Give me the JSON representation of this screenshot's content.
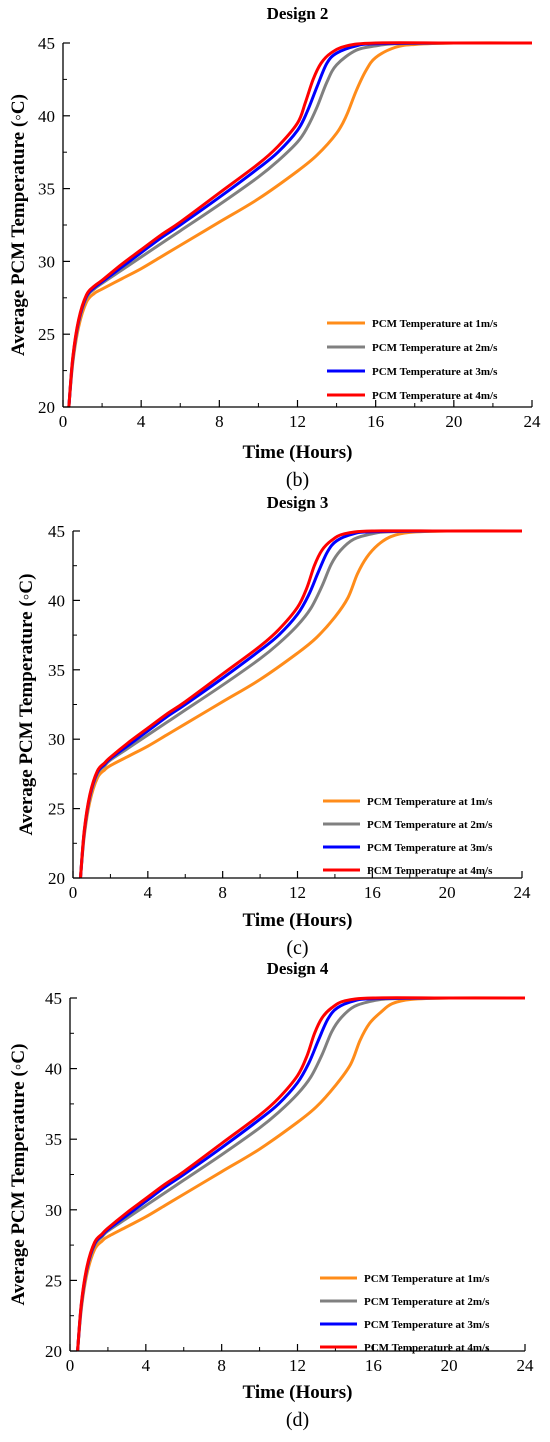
{
  "colors": {
    "1m/s": "#ff8c1a",
    "2m/s": "#808080",
    "3m/s": "#0000ff",
    "4m/s": "#ff0000"
  },
  "chart_data": [
    {
      "type": "line",
      "title": "Design 2",
      "panel_label": "(b)",
      "xlabel": "Time (Hours)",
      "ylabel": "Average PCM Temperature (◦C)",
      "xlim": [
        0,
        24
      ],
      "ylim": [
        20,
        45
      ],
      "xticks": [
        0,
        4,
        8,
        12,
        16,
        20,
        24
      ],
      "yticks": [
        20,
        25,
        30,
        35,
        40,
        45
      ],
      "legend_position": "lower-right",
      "series": [
        {
          "name": "PCM Temperature at 1m/s",
          "color_key": "1m/s",
          "x": [
            0.3,
            0.5,
            0.8,
            1.2,
            1.6,
            2,
            3,
            4,
            5,
            6,
            8,
            10,
            12,
            13,
            14,
            14.5,
            15,
            15.5,
            16,
            17,
            18,
            20,
            24
          ],
          "y": [
            20,
            23,
            25.5,
            27.2,
            27.8,
            28.1,
            28.8,
            29.5,
            30.3,
            31.1,
            32.7,
            34.3,
            36.2,
            37.3,
            38.8,
            40,
            41.7,
            43.1,
            44,
            44.7,
            44.9,
            45,
            45
          ]
        },
        {
          "name": "PCM Temperature at 2m/s",
          "color_key": "2m/s",
          "x": [
            0.3,
            0.5,
            0.8,
            1.2,
            1.6,
            2,
            3,
            4,
            5,
            6,
            8,
            10,
            11,
            12,
            12.5,
            13,
            13.5,
            14,
            15,
            16,
            17,
            20,
            24
          ],
          "y": [
            20,
            23.2,
            25.8,
            27.5,
            28.1,
            28.5,
            29.4,
            30.3,
            31.2,
            32.1,
            33.9,
            35.8,
            36.9,
            38.2,
            39.2,
            40.6,
            42.3,
            43.5,
            44.5,
            44.8,
            44.95,
            45,
            45
          ]
        },
        {
          "name": "PCM Temperature at 3m/s",
          "color_key": "3m/s",
          "x": [
            0.3,
            0.5,
            0.8,
            1.2,
            1.6,
            2,
            3,
            4,
            5,
            6,
            8,
            10,
            11,
            12,
            12.5,
            13,
            13.5,
            14,
            15,
            16,
            20,
            24
          ],
          "y": [
            20,
            23.3,
            25.9,
            27.6,
            28.2,
            28.6,
            29.6,
            30.6,
            31.6,
            32.5,
            34.4,
            36.4,
            37.5,
            39,
            40.3,
            42,
            43.6,
            44.3,
            44.8,
            44.95,
            45,
            45
          ]
        },
        {
          "name": "PCM Temperature at 4m/s",
          "color_key": "4m/s",
          "x": [
            0.3,
            0.5,
            0.8,
            1.2,
            1.6,
            2,
            3,
            4,
            5,
            6,
            8,
            10,
            11,
            12,
            12.4,
            12.8,
            13.2,
            13.7,
            14.5,
            16,
            20,
            24
          ],
          "y": [
            20,
            23.4,
            26,
            27.7,
            28.3,
            28.7,
            29.8,
            30.8,
            31.8,
            32.7,
            34.7,
            36.7,
            37.9,
            39.5,
            40.9,
            42.5,
            43.6,
            44.3,
            44.8,
            45,
            45,
            45
          ]
        }
      ]
    },
    {
      "type": "line",
      "title": "Design 3",
      "panel_label": "(c)",
      "xlabel": "Time (Hours)",
      "ylabel": "Average PCM Temperature (◦C)",
      "xlim": [
        0,
        24
      ],
      "ylim": [
        20,
        45
      ],
      "xticks": [
        0,
        4,
        8,
        12,
        16,
        20,
        24
      ],
      "yticks": [
        20,
        25,
        30,
        35,
        40,
        45
      ],
      "legend_position": "lower-right",
      "series": [
        {
          "name": "PCM Temperature at 1m/s",
          "color_key": "1m/s",
          "x": [
            0.4,
            0.6,
            0.9,
            1.3,
            1.7,
            2,
            3,
            4,
            5,
            6,
            8,
            10,
            12,
            13,
            14,
            14.7,
            15.2,
            15.7,
            16.3,
            17,
            18,
            20,
            24
          ],
          "y": [
            20,
            23,
            25.5,
            27.2,
            27.8,
            28.1,
            28.8,
            29.5,
            30.3,
            31.1,
            32.7,
            34.3,
            36.2,
            37.3,
            38.8,
            40.2,
            41.9,
            43.1,
            44,
            44.6,
            44.9,
            45,
            45
          ]
        },
        {
          "name": "PCM Temperature at 2m/s",
          "color_key": "2m/s",
          "x": [
            0.4,
            0.6,
            0.9,
            1.3,
            1.7,
            2,
            3,
            4,
            5,
            6,
            8,
            10,
            11,
            12,
            12.7,
            13.3,
            13.8,
            14.3,
            15,
            16,
            17,
            20,
            24
          ],
          "y": [
            20,
            23.2,
            25.8,
            27.5,
            28.1,
            28.5,
            29.4,
            30.3,
            31.2,
            32.1,
            33.9,
            35.8,
            36.9,
            38.2,
            39.4,
            41,
            42.6,
            43.6,
            44.4,
            44.8,
            44.95,
            45,
            45
          ]
        },
        {
          "name": "PCM Temperature at 3m/s",
          "color_key": "3m/s",
          "x": [
            0.4,
            0.6,
            0.9,
            1.3,
            1.7,
            2,
            3,
            4,
            5,
            6,
            8,
            10,
            11,
            12,
            12.6,
            13.1,
            13.6,
            14.1,
            15,
            16,
            20,
            24
          ],
          "y": [
            20,
            23.3,
            25.9,
            27.6,
            28.2,
            28.6,
            29.6,
            30.6,
            31.6,
            32.5,
            34.4,
            36.4,
            37.5,
            39,
            40.4,
            42,
            43.5,
            44.3,
            44.8,
            44.95,
            45,
            45
          ]
        },
        {
          "name": "PCM Temperature at 4m/s",
          "color_key": "4m/s",
          "x": [
            0.4,
            0.6,
            0.9,
            1.3,
            1.7,
            2,
            3,
            4,
            5,
            6,
            8,
            10,
            11,
            12,
            12.5,
            12.9,
            13.3,
            13.8,
            14.5,
            16,
            20,
            24
          ],
          "y": [
            20,
            23.4,
            26,
            27.7,
            28.3,
            28.7,
            29.8,
            30.8,
            31.8,
            32.7,
            34.7,
            36.7,
            37.9,
            39.5,
            40.9,
            42.5,
            43.6,
            44.3,
            44.8,
            45,
            45,
            45
          ]
        }
      ]
    },
    {
      "type": "line",
      "title": "Design 4",
      "panel_label": "(d)",
      "xlabel": "Time (Hours)",
      "ylabel": "Average PCM Temperature (◦C)",
      "xlim": [
        0,
        24
      ],
      "ylim": [
        20,
        45
      ],
      "xticks": [
        0,
        4,
        8,
        12,
        16,
        20,
        24
      ],
      "yticks": [
        20,
        25,
        30,
        35,
        40,
        45
      ],
      "legend_position": "lower-right",
      "series": [
        {
          "name": "PCM Temperature at 1m/s",
          "color_key": "1m/s",
          "x": [
            0.4,
            0.6,
            0.9,
            1.3,
            1.7,
            2,
            3,
            4,
            5,
            6,
            8,
            10,
            12,
            13,
            14,
            14.8,
            15.3,
            15.8,
            16.4,
            17,
            18,
            20,
            24
          ],
          "y": [
            20,
            23,
            25.5,
            27.2,
            27.8,
            28.1,
            28.8,
            29.5,
            30.3,
            31.1,
            32.7,
            34.3,
            36.2,
            37.3,
            38.8,
            40.3,
            42,
            43.2,
            44,
            44.6,
            44.9,
            45,
            45
          ]
        },
        {
          "name": "PCM Temperature at 2m/s",
          "color_key": "2m/s",
          "x": [
            0.4,
            0.6,
            0.9,
            1.3,
            1.7,
            2,
            3,
            4,
            5,
            6,
            8,
            10,
            11,
            12,
            12.7,
            13.3,
            13.8,
            14.3,
            15,
            16,
            17,
            20,
            24
          ],
          "y": [
            20,
            23.2,
            25.8,
            27.5,
            28.1,
            28.5,
            29.4,
            30.3,
            31.2,
            32.1,
            33.9,
            35.8,
            36.9,
            38.2,
            39.4,
            41,
            42.6,
            43.6,
            44.4,
            44.8,
            44.95,
            45,
            45
          ]
        },
        {
          "name": "PCM Temperature at 3m/s",
          "color_key": "3m/s",
          "x": [
            0.4,
            0.6,
            0.9,
            1.3,
            1.7,
            2,
            3,
            4,
            5,
            6,
            8,
            10,
            11,
            12,
            12.6,
            13.1,
            13.6,
            14.1,
            15,
            16,
            20,
            24
          ],
          "y": [
            20,
            23.3,
            25.9,
            27.6,
            28.2,
            28.6,
            29.6,
            30.6,
            31.6,
            32.5,
            34.4,
            36.4,
            37.5,
            39,
            40.4,
            42,
            43.5,
            44.3,
            44.8,
            44.95,
            45,
            45
          ]
        },
        {
          "name": "PCM Temperature at 4m/s",
          "color_key": "4m/s",
          "x": [
            0.4,
            0.6,
            0.9,
            1.3,
            1.7,
            2,
            3,
            4,
            5,
            6,
            8,
            10,
            11,
            12,
            12.5,
            12.9,
            13.3,
            13.8,
            14.5,
            16,
            20,
            24
          ],
          "y": [
            20,
            23.4,
            26,
            27.7,
            28.3,
            28.7,
            29.8,
            30.8,
            31.8,
            32.7,
            34.7,
            36.7,
            37.9,
            39.5,
            40.9,
            42.5,
            43.6,
            44.3,
            44.8,
            45,
            45,
            45
          ]
        }
      ]
    }
  ]
}
